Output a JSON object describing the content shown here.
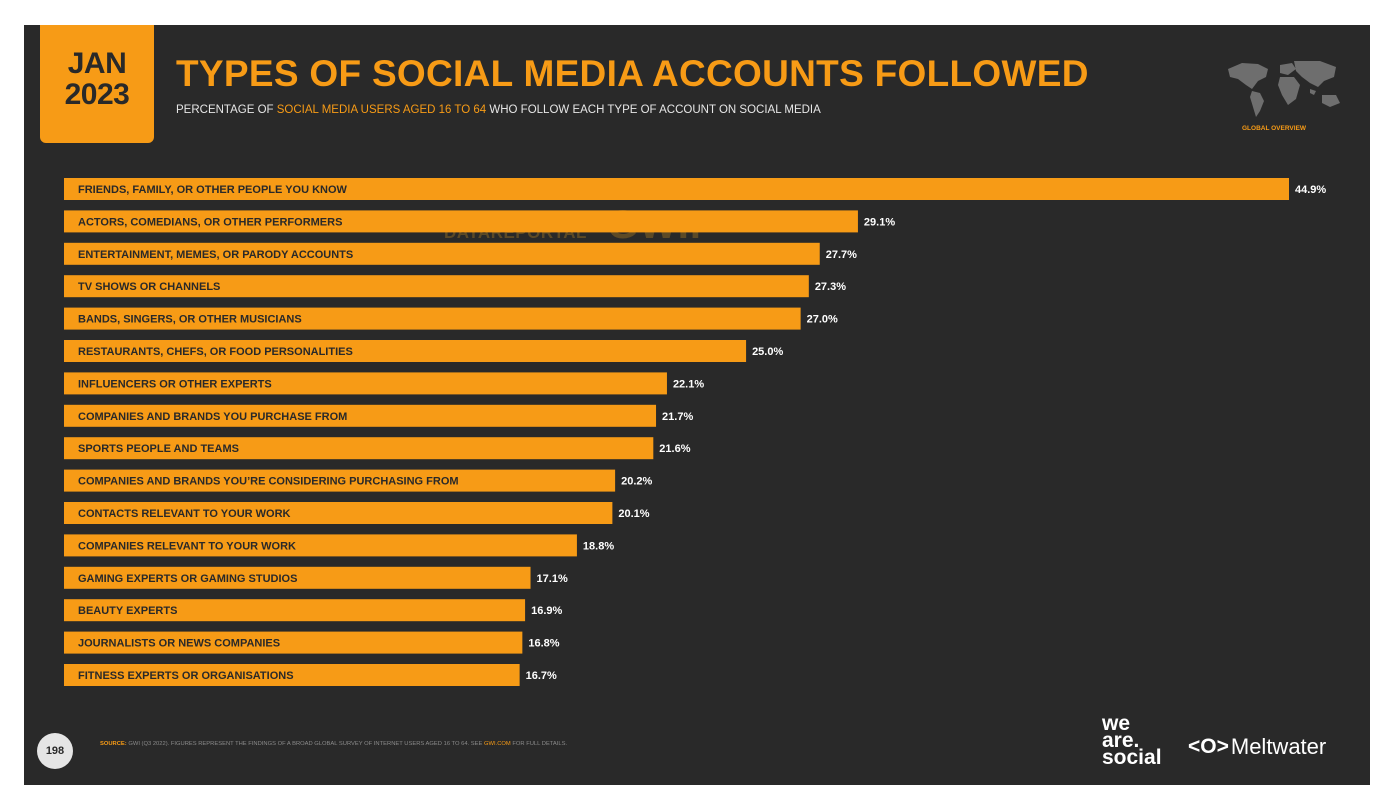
{
  "header": {
    "month": "JAN",
    "year": "2023",
    "title": "TYPES OF SOCIAL MEDIA ACCOUNTS FOLLOWED",
    "subtitle_pre": "PERCENTAGE OF ",
    "subtitle_highlight": "SOCIAL MEDIA USERS AGED 16 TO 64",
    "subtitle_post": " WHO FOLLOW EACH TYPE OF ACCOUNT ON SOCIAL MEDIA",
    "logo_caption": "GLOBAL OVERVIEW"
  },
  "watermark": {
    "datareportal": "DATAREPORTAL",
    "gwi": "GWI."
  },
  "footer": {
    "page_number": "198",
    "source_label": "SOURCE:",
    "source_text": " GWI (Q3 2022). FIGURES REPRESENT THE FINDINGS OF A BROAD GLOBAL SURVEY OF INTERNET USERS AGED 16 TO 64. SEE ",
    "source_link": "GWI.COM",
    "source_post": " FOR FULL DETAILS.",
    "brand_we": "we",
    "brand_are": "are.",
    "brand_social": "social",
    "brand_meltwater_icon": "<O>",
    "brand_meltwater": "Meltwater"
  },
  "colors": {
    "background": "#292929",
    "accent": "#f79b16",
    "bar_text": "#292929",
    "value_text": "#ffffff"
  },
  "chart_data": {
    "type": "bar",
    "orientation": "horizontal",
    "categories": [
      "FRIENDS, FAMILY, OR OTHER PEOPLE YOU KNOW",
      "ACTORS, COMEDIANS, OR OTHER PERFORMERS",
      "ENTERTAINMENT, MEMES, OR PARODY ACCOUNTS",
      "TV SHOWS OR CHANNELS",
      "BANDS, SINGERS, OR OTHER MUSICIANS",
      "RESTAURANTS, CHEFS, OR FOOD PERSONALITIES",
      "INFLUENCERS OR OTHER EXPERTS",
      "COMPANIES AND BRANDS YOU PURCHASE FROM",
      "SPORTS PEOPLE AND TEAMS",
      "COMPANIES AND BRANDS YOU’RE CONSIDERING PURCHASING FROM",
      "CONTACTS RELEVANT TO YOUR WORK",
      "COMPANIES RELEVANT TO YOUR WORK",
      "GAMING EXPERTS OR GAMING STUDIOS",
      "BEAUTY EXPERTS",
      "JOURNALISTS OR NEWS COMPANIES",
      "FITNESS EXPERTS OR ORGANISATIONS"
    ],
    "values": [
      44.9,
      29.1,
      27.7,
      27.3,
      27.0,
      25.0,
      22.1,
      21.7,
      21.6,
      20.2,
      20.1,
      18.8,
      17.1,
      16.9,
      16.8,
      16.7
    ],
    "value_labels": [
      "44.9%",
      "29.1%",
      "27.7%",
      "27.3%",
      "27.0%",
      "25.0%",
      "22.1%",
      "21.7%",
      "21.6%",
      "20.2%",
      "20.1%",
      "18.8%",
      "17.1%",
      "16.9%",
      "16.8%",
      "16.7%"
    ],
    "xlim": [
      0,
      44.9
    ],
    "grid": false,
    "legend": "none"
  }
}
